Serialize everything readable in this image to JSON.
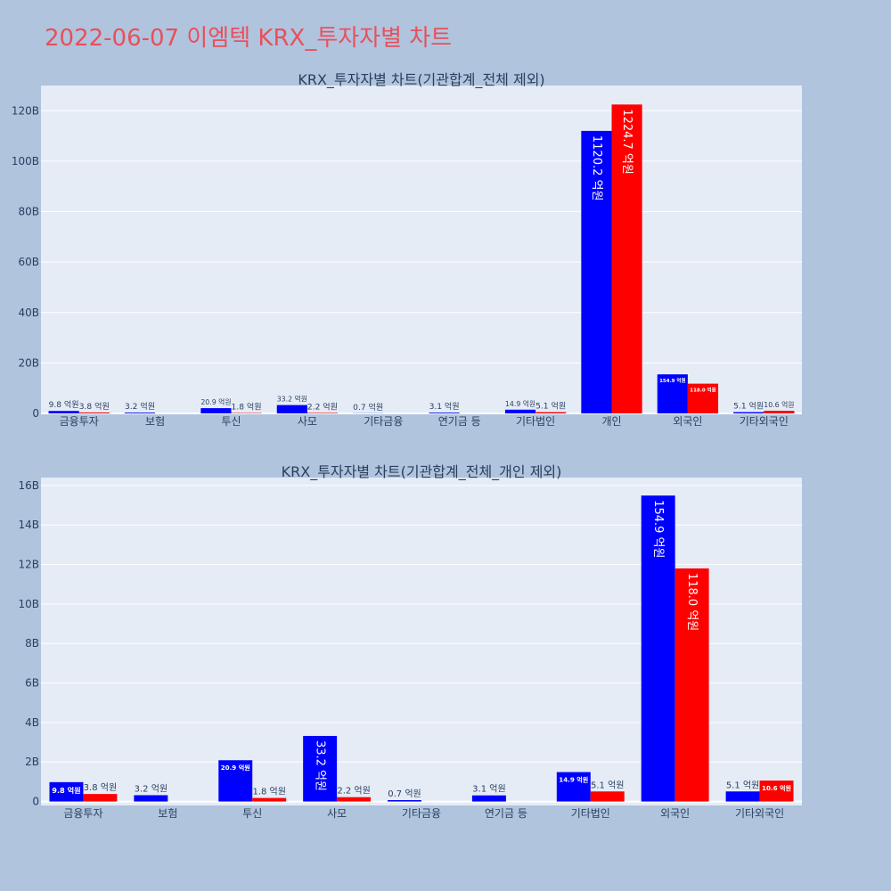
{
  "title": "2022-06-07 이엠텍 KRX_투자자별 차트",
  "colors": {
    "title": "#e8505b",
    "series_a": "#0000ff",
    "series_b": "#ff0000",
    "plot_bg": "#e5ecf6",
    "page_bg": "#b0c4de"
  },
  "chart_data": [
    {
      "type": "bar",
      "title": "KRX_투자자별 차트(기관합계_전체 제외)",
      "categories": [
        "금융투자",
        "보험",
        "투신",
        "사모",
        "기타금융",
        "연기금 등",
        "기타법인",
        "개인",
        "외국인",
        "기타외국인"
      ],
      "series": [
        {
          "values": [
            0.98,
            0.32,
            2.09,
            3.32,
            0.07,
            0.31,
            1.49,
            112.02,
            15.49,
            0.51
          ],
          "labels": [
            "9.8 억원",
            "3.2 억원",
            "20.9 억원",
            "33.2 억원",
            "0.7 억원",
            "3.1 억원",
            "14.9 억원",
            "1120.2 억원",
            "154.9 억원",
            "5.1 억원"
          ]
        },
        {
          "values": [
            0.38,
            0,
            0.18,
            0.22,
            0,
            0,
            0.51,
            122.47,
            11.8,
            1.06
          ],
          "labels": [
            "3.8 억원",
            "",
            "1.8 억원",
            "2.2 억원",
            "",
            "",
            "5.1 억원",
            "1224.7 억원",
            "118.0 억원",
            "10.6 억원"
          ]
        }
      ],
      "ylim": [
        0,
        130
      ],
      "yticks": [
        0,
        20,
        40,
        60,
        80,
        100,
        120
      ],
      "ytick_labels": [
        "0",
        "20B",
        "40B",
        "60B",
        "80B",
        "100B",
        "120B"
      ],
      "grid": true
    },
    {
      "type": "bar",
      "title": "KRX_투자자별 차트(기관합계_전체_개인 제외)",
      "categories": [
        "금융투자",
        "보험",
        "투신",
        "사모",
        "기타금융",
        "연기금 등",
        "기타법인",
        "외국인",
        "기타외국인"
      ],
      "series": [
        {
          "values": [
            0.98,
            0.32,
            2.09,
            3.32,
            0.07,
            0.31,
            1.49,
            15.49,
            0.51
          ],
          "labels": [
            "9.8 억원",
            "3.2 억원",
            "20.9 억원",
            "33.2 억원",
            "0.7 억원",
            "3.1 억원",
            "14.9 억원",
            "154.9 억원",
            "5.1 억원"
          ]
        },
        {
          "values": [
            0.38,
            0,
            0.18,
            0.22,
            0,
            0,
            0.51,
            11.8,
            1.06
          ],
          "labels": [
            "3.8 억원",
            "",
            "1.8 억원",
            "2.2 억원",
            "",
            "",
            "5.1 억원",
            "118.0 억원",
            "10.6 억원"
          ]
        }
      ],
      "ylim": [
        -0.2,
        16.4
      ],
      "yticks": [
        0,
        2,
        4,
        6,
        8,
        10,
        12,
        14,
        16
      ],
      "ytick_labels": [
        "0",
        "2B",
        "4B",
        "6B",
        "8B",
        "10B",
        "12B",
        "14B",
        "16B"
      ],
      "grid": true
    }
  ]
}
